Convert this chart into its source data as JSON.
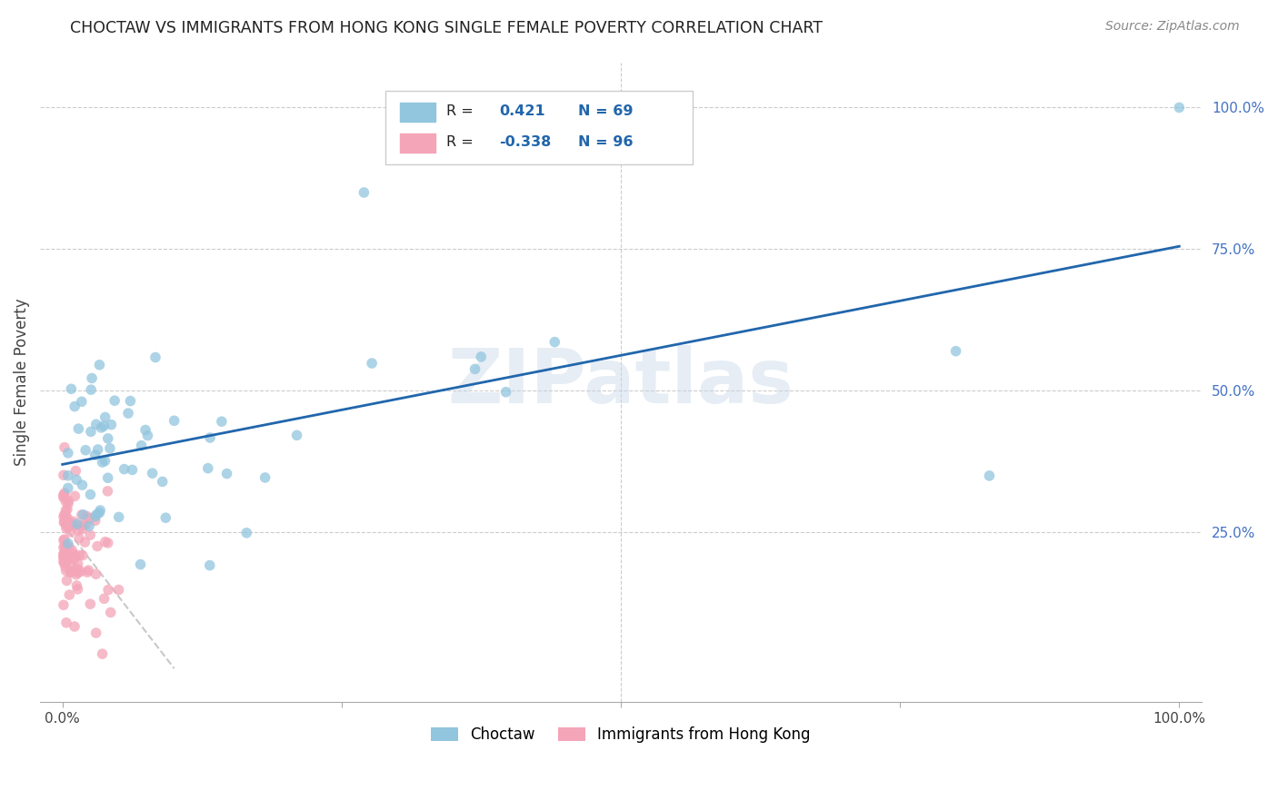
{
  "title": "CHOCTAW VS IMMIGRANTS FROM HONG KONG SINGLE FEMALE POVERTY CORRELATION CHART",
  "source": "Source: ZipAtlas.com",
  "ylabel": "Single Female Poverty",
  "legend_label1": "Choctaw",
  "legend_label2": "Immigrants from Hong Kong",
  "r1": 0.421,
  "n1": 69,
  "r2": -0.338,
  "n2": 96,
  "watermark": "ZIPatlas",
  "blue_color": "#92c5de",
  "pink_color": "#f4a5b8",
  "line_blue": "#2166ac",
  "xlim": [
    -0.02,
    1.02
  ],
  "ylim": [
    -0.05,
    1.08
  ],
  "blue_line_x0": 0.0,
  "blue_line_x1": 1.0,
  "blue_line_y0": 0.37,
  "blue_line_y1": 0.755,
  "pink_line_x0": 0.0,
  "pink_line_x1": 0.1,
  "pink_line_y0": 0.265,
  "pink_line_y1": 0.01,
  "ytick_vals": [
    0.25,
    0.5,
    0.75,
    1.0
  ],
  "ytick_labels": [
    "25.0%",
    "50.0%",
    "75.0%",
    "100.0%"
  ],
  "xtick_vals": [
    0.0,
    0.25,
    0.5,
    0.75,
    1.0
  ],
  "xtick_labels": [
    "0.0%",
    "",
    "",
    "",
    "100.0%"
  ]
}
